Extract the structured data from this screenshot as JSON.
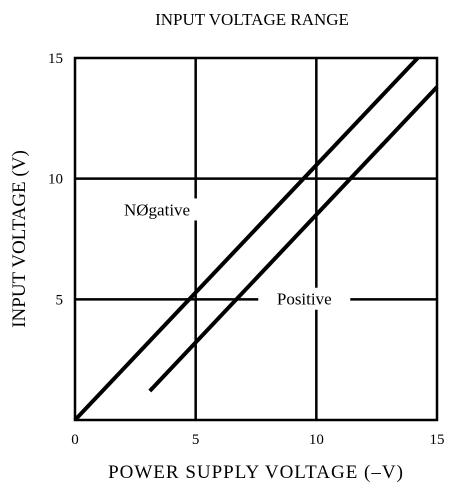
{
  "chart_data": {
    "type": "line",
    "title": "INPUT VOLTAGE RANGE",
    "xlabel": "POWER SUPPLY VOLTAGE (–V)",
    "ylabel": "INPUT VOLTAGE (V)",
    "xlim": [
      0,
      15
    ],
    "ylim": [
      0,
      15
    ],
    "xticks": [
      0,
      5,
      10,
      15
    ],
    "yticks": [
      5,
      10,
      15
    ],
    "x_tick_labels": [
      "0",
      "5",
      "10",
      "15"
    ],
    "y_tick_labels": [
      "5",
      "10",
      "15"
    ],
    "grid": true,
    "series": [
      {
        "name": "NØgative",
        "x": [
          0,
          14.2
        ],
        "y": [
          0,
          15
        ]
      },
      {
        "name": "Positive",
        "x": [
          3.1,
          15
        ],
        "y": [
          1.2,
          13.8
        ]
      }
    ],
    "colors": {
      "line": "#000000",
      "grid": "#000000",
      "background": "#ffffff"
    }
  }
}
